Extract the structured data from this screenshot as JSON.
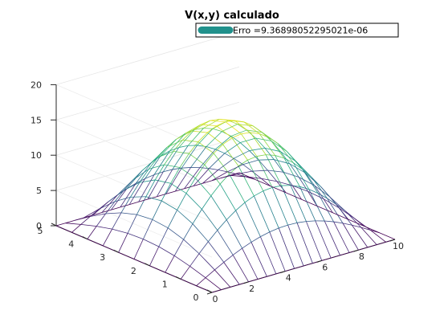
{
  "chart_data": {
    "type": "surface-mesh",
    "title": "V(x,y) calculado",
    "xlabel": "",
    "ylabel": "",
    "zlabel": "",
    "xlim": [
      0,
      10
    ],
    "ylim": [
      0,
      5
    ],
    "zlim": [
      0,
      20
    ],
    "x_ticks": [
      0,
      2,
      4,
      6,
      8,
      10
    ],
    "y_ticks": [
      0,
      1,
      2,
      3,
      4,
      5
    ],
    "z_ticks": [
      0,
      5,
      10,
      15,
      20
    ],
    "x_tick_labels": [
      "0",
      "2",
      "4",
      "6",
      "8",
      "10"
    ],
    "y_tick_labels": [
      "0",
      "1",
      "2",
      "3",
      "4",
      "5"
    ],
    "z_tick_labels": [
      "0",
      "5",
      "10",
      "15",
      "20"
    ],
    "grid": true,
    "colormap": "viridis",
    "surface": {
      "formula": "peak * sin(pi*x/10) * sin(pi*y/5)",
      "peak": 15.7,
      "x_samples": 21,
      "y_samples": 11
    },
    "legend": {
      "placement": "top-right",
      "entries": [
        {
          "label": "Erro =9.36898052295021e-06",
          "color": "#21918c"
        }
      ]
    }
  }
}
